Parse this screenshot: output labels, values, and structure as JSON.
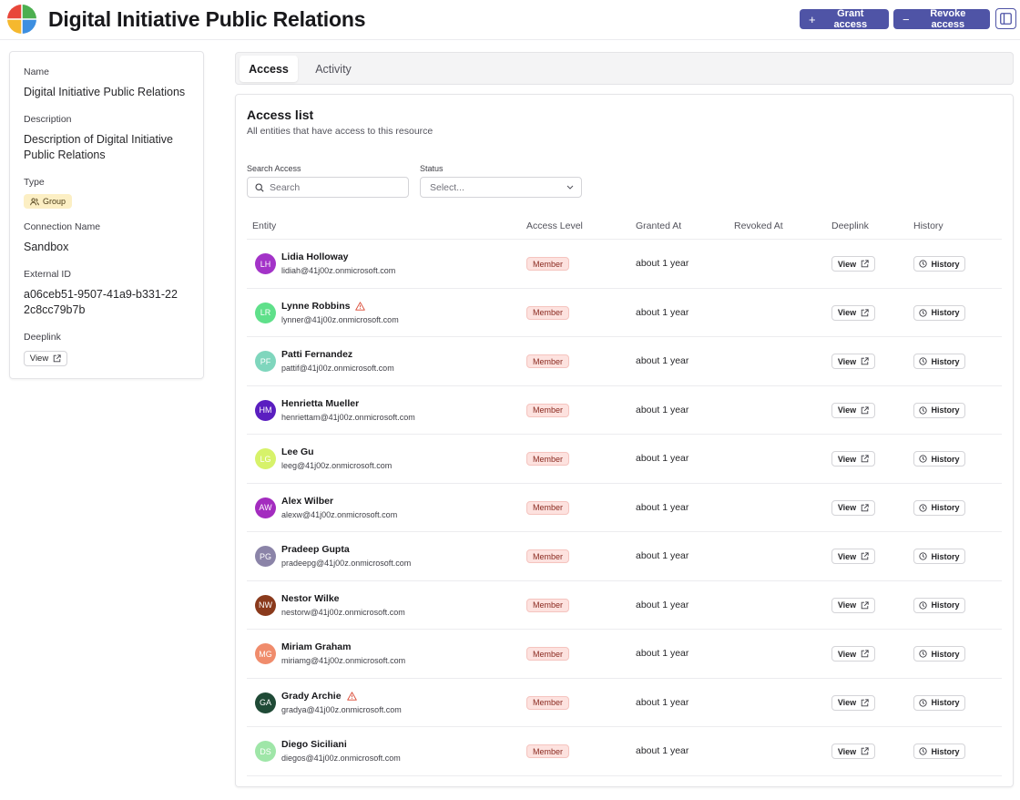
{
  "header": {
    "title": "Digital Initiative Public Relations",
    "grant_label": "Grant access",
    "revoke_label": "Revoke access",
    "grant_glyph": "+",
    "revoke_glyph": "−"
  },
  "details": {
    "name_label": "Name",
    "name_value": "Digital Initiative Public Relations",
    "description_label": "Description",
    "description_value": "Description of Digital Initiative Public Relations",
    "type_label": "Type",
    "type_value": "Group",
    "connection_label": "Connection Name",
    "connection_value": "Sandbox",
    "external_id_label": "External ID",
    "external_id_value": "a06ceb51-9507-41a9-b331-222c8cc79b7b",
    "deeplink_label": "Deeplink",
    "deeplink_button": "View"
  },
  "tabs": [
    {
      "label": "Access",
      "active": true
    },
    {
      "label": "Activity",
      "active": false
    }
  ],
  "access": {
    "title": "Access list",
    "subtitle": "All entities that have access to this resource",
    "search_label": "Search Access",
    "search_placeholder": "Search",
    "status_label": "Status",
    "status_placeholder": "Select...",
    "columns": [
      "Entity",
      "Access Level",
      "Granted At",
      "Revoked At",
      "Deeplink",
      "History"
    ],
    "view_label": "View",
    "history_label": "History",
    "rows": [
      {
        "initials": "LH",
        "name": "Lidia Holloway",
        "email": "lidiah@41j00z.onmicrosoft.com",
        "level": "Member",
        "granted": "about 1 year",
        "revoked": "",
        "warning": false,
        "color": "#a333c8"
      },
      {
        "initials": "LR",
        "name": "Lynne Robbins",
        "email": "lynner@41j00z.onmicrosoft.com",
        "level": "Member",
        "granted": "about 1 year",
        "revoked": "",
        "warning": true,
        "color": "#5fe08a"
      },
      {
        "initials": "PF",
        "name": "Patti Fernandez",
        "email": "pattif@41j00z.onmicrosoft.com",
        "level": "Member",
        "granted": "about 1 year",
        "revoked": "",
        "warning": false,
        "color": "#7fd6bd"
      },
      {
        "initials": "HM",
        "name": "Henrietta Mueller",
        "email": "henriettam@41j00z.onmicrosoft.com",
        "level": "Member",
        "granted": "about 1 year",
        "revoked": "",
        "warning": false,
        "color": "#5a1ec0"
      },
      {
        "initials": "LG",
        "name": "Lee Gu",
        "email": "leeg@41j00z.onmicrosoft.com",
        "level": "Member",
        "granted": "about 1 year",
        "revoked": "",
        "warning": false,
        "color": "#d7f26a"
      },
      {
        "initials": "AW",
        "name": "Alex Wilber",
        "email": "alexw@41j00z.onmicrosoft.com",
        "level": "Member",
        "granted": "about 1 year",
        "revoked": "",
        "warning": false,
        "color": "#a32cbf"
      },
      {
        "initials": "PG",
        "name": "Pradeep Gupta",
        "email": "pradeepg@41j00z.onmicrosoft.com",
        "level": "Member",
        "granted": "about 1 year",
        "revoked": "",
        "warning": false,
        "color": "#8b84a8"
      },
      {
        "initials": "NW",
        "name": "Nestor Wilke",
        "email": "nestorw@41j00z.onmicrosoft.com",
        "level": "Member",
        "granted": "about 1 year",
        "revoked": "",
        "warning": false,
        "color": "#8a3a1c"
      },
      {
        "initials": "MG",
        "name": "Miriam Graham",
        "email": "miriamg@41j00z.onmicrosoft.com",
        "level": "Member",
        "granted": "about 1 year",
        "revoked": "",
        "warning": false,
        "color": "#f08c6c"
      },
      {
        "initials": "GA",
        "name": "Grady Archie",
        "email": "gradya@41j00z.onmicrosoft.com",
        "level": "Member",
        "granted": "about 1 year",
        "revoked": "",
        "warning": true,
        "color": "#1f4a36"
      },
      {
        "initials": "DS",
        "name": "Diego Siciliani",
        "email": "diegos@41j00z.onmicrosoft.com",
        "level": "Member",
        "granted": "about 1 year",
        "revoked": "",
        "warning": false,
        "color": "#9fe6a8"
      }
    ]
  },
  "icons": {
    "logo": "app-logo-icon",
    "plus": "plus-icon",
    "minus": "minus-icon",
    "panel": "panel-toggle-icon",
    "group": "users-icon",
    "external": "external-link-icon",
    "search": "search-icon",
    "chevron": "chevron-down-icon",
    "clock": "clock-icon",
    "warning": "warning-icon"
  },
  "colors": {
    "primary": "#4f54a6",
    "badge_member_bg": "#fde2df",
    "badge_member_text": "#8a2a20",
    "badge_group_bg": "#fcefc4",
    "warning": "#d9442f"
  }
}
